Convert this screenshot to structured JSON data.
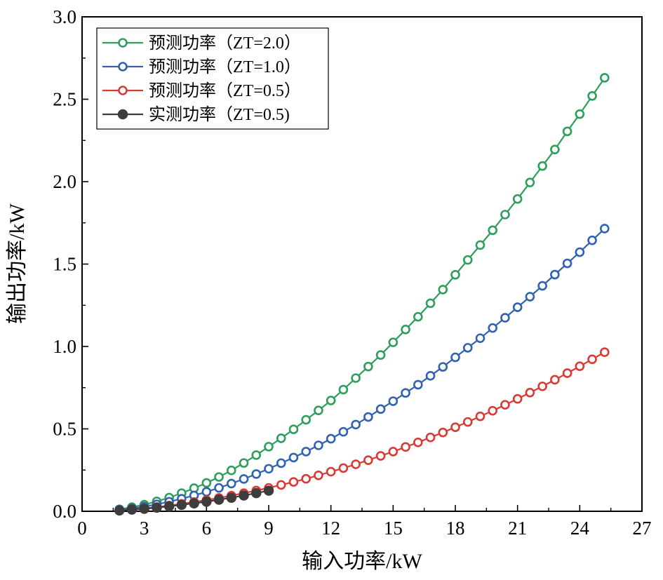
{
  "chart_data": {
    "type": "line",
    "title": "",
    "xlabel": "输入功率/kW",
    "ylabel": "输出功率/kW",
    "xlim": [
      0,
      27
    ],
    "ylim": [
      0.0,
      3.0
    ],
    "xticks": [
      0,
      3,
      6,
      9,
      12,
      15,
      18,
      21,
      24,
      27
    ],
    "xtick_labels": [
      "0",
      "3",
      "6",
      "9",
      "12",
      "15",
      "18",
      "21",
      "24",
      "27"
    ],
    "yticks": [
      0.0,
      0.5,
      1.0,
      1.5,
      2.0,
      2.5,
      3.0
    ],
    "ytick_labels": [
      "0.0",
      "0.5",
      "1.0",
      "1.5",
      "2.0",
      "2.5",
      "3.0"
    ],
    "grid": false,
    "legend_position": "top-left",
    "series": [
      {
        "name": "预测功率（ZT=2.0）",
        "color": "#2e9e5b",
        "marker": "open-circle",
        "x": [
          1.8,
          2.4,
          3.0,
          3.6,
          4.2,
          4.8,
          5.4,
          6.0,
          6.6,
          7.2,
          7.8,
          8.4,
          9.0,
          9.6,
          10.2,
          10.8,
          11.4,
          12.0,
          12.6,
          13.2,
          13.8,
          14.4,
          15.0,
          15.6,
          16.2,
          16.8,
          17.4,
          18.0,
          18.6,
          19.2,
          19.8,
          20.4,
          21.0,
          21.6,
          22.2,
          22.8,
          23.4,
          24.0,
          24.6,
          25.2
        ],
        "y": [
          0.012,
          0.025,
          0.04,
          0.06,
          0.083,
          0.11,
          0.14,
          0.172,
          0.208,
          0.248,
          0.293,
          0.341,
          0.392,
          0.443,
          0.497,
          0.555,
          0.612,
          0.672,
          0.738,
          0.808,
          0.878,
          0.948,
          1.025,
          1.103,
          1.18,
          1.262,
          1.345,
          1.435,
          1.525,
          1.615,
          1.705,
          1.8,
          1.895,
          1.995,
          2.095,
          2.195,
          2.305,
          2.41,
          2.52,
          2.63
        ]
      },
      {
        "name": "预测功率（ZT=1.0）",
        "color": "#2f63b0",
        "marker": "open-circle",
        "x": [
          1.8,
          2.4,
          3.0,
          3.6,
          4.2,
          4.8,
          5.4,
          6.0,
          6.6,
          7.2,
          7.8,
          8.4,
          9.0,
          9.6,
          10.2,
          10.8,
          11.4,
          12.0,
          12.6,
          13.2,
          13.8,
          14.4,
          15.0,
          15.6,
          16.2,
          16.8,
          17.4,
          18.0,
          18.6,
          19.2,
          19.8,
          20.4,
          21.0,
          21.6,
          22.2,
          22.8,
          23.4,
          24.0,
          24.6,
          25.2
        ],
        "y": [
          0.01,
          0.018,
          0.028,
          0.042,
          0.058,
          0.076,
          0.096,
          0.118,
          0.142,
          0.168,
          0.196,
          0.226,
          0.258,
          0.292,
          0.326,
          0.362,
          0.4,
          0.44,
          0.482,
          0.526,
          0.572,
          0.62,
          0.668,
          0.718,
          0.768,
          0.822,
          0.876,
          0.934,
          0.992,
          1.05,
          1.112,
          1.174,
          1.238,
          1.302,
          1.368,
          1.436,
          1.504,
          1.572,
          1.644,
          1.715
        ]
      },
      {
        "name": "预测功率（ZT=0.5）",
        "color": "#d93a35",
        "marker": "open-circle",
        "x": [
          1.8,
          2.4,
          3.0,
          3.6,
          4.2,
          4.8,
          5.4,
          6.0,
          6.6,
          7.2,
          7.8,
          8.4,
          9.0,
          9.6,
          10.2,
          10.8,
          11.4,
          12.0,
          12.6,
          13.2,
          13.8,
          14.4,
          15.0,
          15.6,
          16.2,
          16.8,
          17.4,
          18.0,
          18.6,
          19.2,
          19.8,
          20.4,
          21.0,
          21.6,
          22.2,
          22.8,
          23.4,
          24.0,
          24.6,
          25.2
        ],
        "y": [
          0.006,
          0.012,
          0.018,
          0.026,
          0.035,
          0.045,
          0.056,
          0.068,
          0.081,
          0.095,
          0.11,
          0.126,
          0.142,
          0.16,
          0.178,
          0.197,
          0.218,
          0.24,
          0.262,
          0.285,
          0.31,
          0.336,
          0.362,
          0.39,
          0.418,
          0.448,
          0.478,
          0.51,
          0.542,
          0.576,
          0.61,
          0.646,
          0.682,
          0.72,
          0.758,
          0.798,
          0.838,
          0.88,
          0.922,
          0.965
        ]
      },
      {
        "name": "实测功率（ZT=0.5)",
        "color": "#3d3d3d",
        "marker": "filled-circle",
        "x": [
          1.8,
          2.4,
          3.0,
          3.6,
          4.2,
          4.8,
          5.4,
          6.0,
          6.6,
          7.2,
          7.8,
          8.4,
          9.0
        ],
        "y": [
          0.005,
          0.01,
          0.015,
          0.022,
          0.03,
          0.039,
          0.048,
          0.058,
          0.07,
          0.082,
          0.096,
          0.11,
          0.125
        ]
      }
    ]
  }
}
